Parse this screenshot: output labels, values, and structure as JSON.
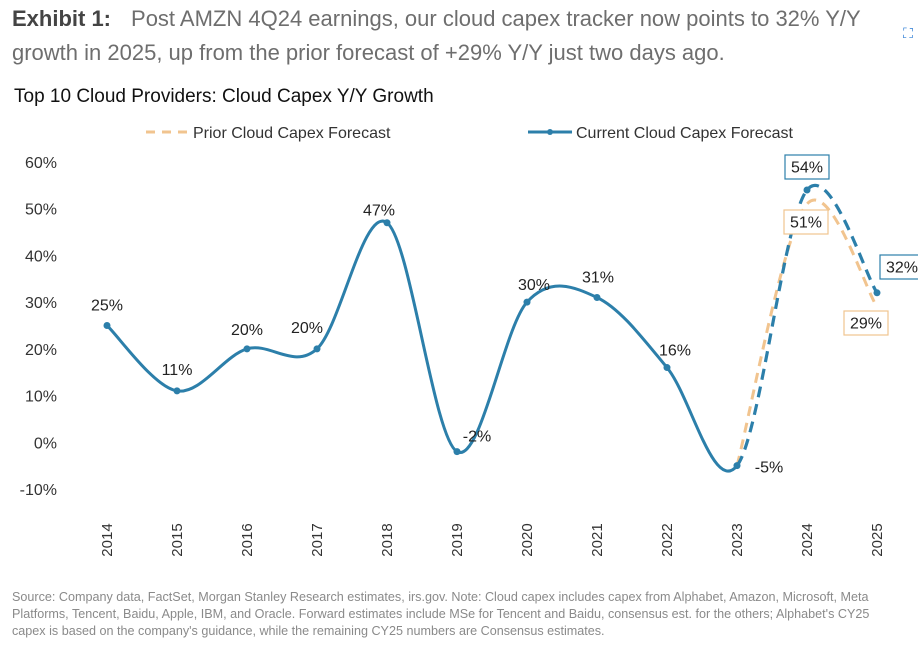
{
  "header": {
    "exhibit_label": "Exhibit 1:",
    "exhibit_text": "Post AMZN 4Q24 earnings, our cloud capex tracker now points to 32% Y/Y growth in 2025, up from the prior forecast of +29% Y/Y just two days ago."
  },
  "chart_data": {
    "type": "line",
    "title": "Top 10 Cloud Providers: Cloud Capex Y/Y Growth",
    "categories": [
      "2014",
      "2015",
      "2016",
      "2017",
      "2018",
      "2019",
      "2020",
      "2021",
      "2022",
      "2023",
      "2024",
      "2025"
    ],
    "y_ticks": [
      "60%",
      "50%",
      "40%",
      "30%",
      "20%",
      "10%",
      "0%",
      "-10%"
    ],
    "ylim": [
      -10,
      60
    ],
    "grid": false,
    "legend_position": "top",
    "series": [
      {
        "name": "Prior Cloud Capex Forecast",
        "color": "#f1c48f",
        "style": "dashed",
        "points": [
          {
            "x": "2023",
            "y": -5
          },
          {
            "x": "2024",
            "y": 51,
            "label": "51%"
          },
          {
            "x": "2025",
            "y": 29,
            "label": "29%"
          }
        ]
      },
      {
        "name": "Current Cloud Capex Forecast",
        "color": "#2c7faa",
        "style": "solid-then-dashed",
        "points": [
          {
            "x": "2014",
            "y": 25,
            "label": "25%"
          },
          {
            "x": "2015",
            "y": 11,
            "label": "11%"
          },
          {
            "x": "2016",
            "y": 20,
            "label": "20%"
          },
          {
            "x": "2017",
            "y": 20,
            "label": "20%"
          },
          {
            "x": "2018",
            "y": 47,
            "label": "47%"
          },
          {
            "x": "2019",
            "y": -2,
            "label": "-2%"
          },
          {
            "x": "2020",
            "y": 30,
            "label": "30%"
          },
          {
            "x": "2021",
            "y": 31,
            "label": "31%"
          },
          {
            "x": "2022",
            "y": 16,
            "label": "16%"
          },
          {
            "x": "2023",
            "y": -5,
            "label": "-5%"
          },
          {
            "x": "2024",
            "y": 54,
            "label": "54%"
          },
          {
            "x": "2025",
            "y": 32,
            "label": "32%"
          }
        ]
      }
    ]
  },
  "source_note": "Source: Company data, FactSet, Morgan Stanley Research estimates, irs.gov. Note: Cloud capex includes capex from Alphabet, Amazon, Microsoft, Meta Platforms, Tencent, Baidu, Apple, IBM, and Oracle. Forward estimates include MSe for Tencent and Baidu, consensus est. for the others; Alphabet's CY25 capex is based on the company's guidance, while the remaining CY25 numbers are Consensus estimates."
}
